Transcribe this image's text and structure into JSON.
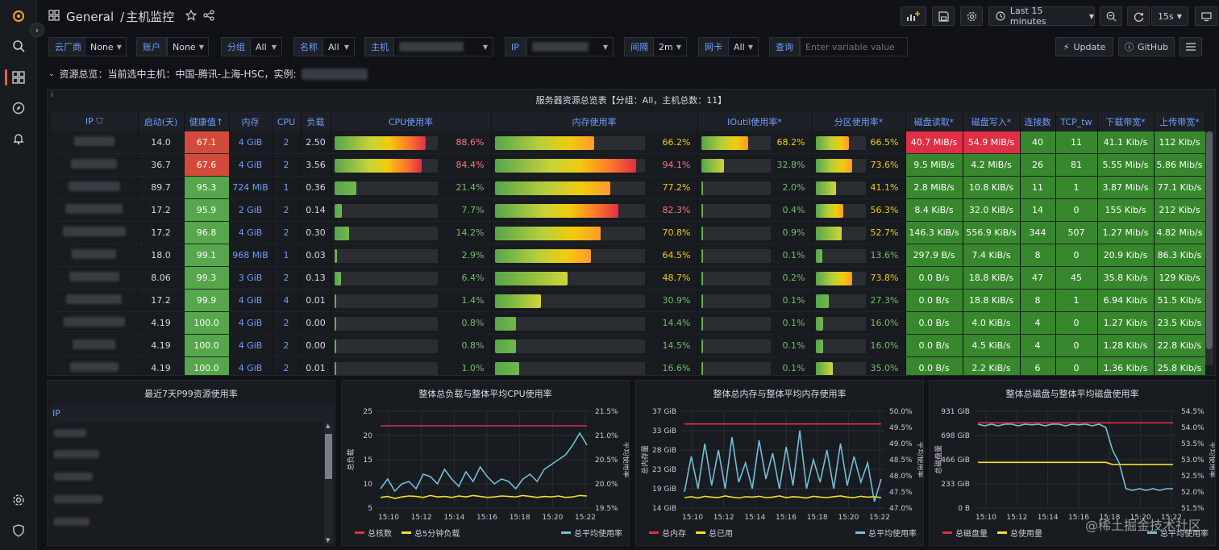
{
  "breadcrumb": {
    "folder": "General",
    "separator": "/",
    "dashboard": "主机监控"
  },
  "toolbar": {
    "time_range": "Last 15 minutes",
    "refresh_interval": "15s"
  },
  "variables": [
    {
      "label": "云厂商",
      "value": "None"
    },
    {
      "label": "账户",
      "value": "None"
    },
    {
      "label": "分组",
      "value": "All"
    },
    {
      "label": "名称",
      "value": "All"
    },
    {
      "label": "主机",
      "value": ""
    },
    {
      "label": "IP",
      "value": ""
    },
    {
      "label": "间隔",
      "value": "2m"
    },
    {
      "label": "网卡",
      "value": "All"
    },
    {
      "label": "查询",
      "placeholder": "Enter variable value"
    }
  ],
  "links": {
    "update": "Update",
    "github": "GitHub"
  },
  "row_title": "资源总览：当前选中主机：中国-腾讯-上海-HSC，实例:",
  "table": {
    "title": "服务器资源总览表【分组：All，主机总数：11】",
    "columns": [
      "IP",
      "启动(天)",
      "健康值",
      "内存",
      "CPU",
      "负载",
      "CPU使用率",
      "内存使用率",
      "IOutil使用率*",
      "分区使用率*",
      "磁盘读取*",
      "磁盘写入*",
      "连接数",
      "TCP_tw",
      "下载带宽*",
      "上传带宽*"
    ],
    "sort_indicator": "↑",
    "rows": [
      {
        "uptime": "14.0",
        "health": "67.1",
        "mem": "4 GiB",
        "cpu": "2",
        "load": "2.50",
        "cpu_pct": 88.6,
        "cpu_txt": "88.6%",
        "mem_pct": 66.2,
        "mem_txt": "66.2%",
        "io_pct": 68.2,
        "io_txt": "68.2%",
        "part_pct": 66.5,
        "part_txt": "66.5%",
        "read": "40.7 MiB/s",
        "write": "54.9 MiB/s",
        "conn": "40",
        "tw": "11",
        "down": "41.1 Kib/s",
        "up": "112 Kib/s"
      },
      {
        "uptime": "36.7",
        "health": "67.6",
        "mem": "4 GiB",
        "cpu": "2",
        "load": "3.56",
        "cpu_pct": 84.4,
        "cpu_txt": "84.4%",
        "mem_pct": 94.1,
        "mem_txt": "94.1%",
        "io_pct": 32.8,
        "io_txt": "32.8%",
        "part_pct": 73.6,
        "part_txt": "73.6%",
        "read": "9.5 MiB/s",
        "write": "4.2 MiB/s",
        "conn": "26",
        "tw": "81",
        "down": "5.55 Mib/s",
        "up": "5.86 Mib/s"
      },
      {
        "uptime": "89.7",
        "health": "95.3",
        "mem": "724 MiB",
        "cpu": "1",
        "load": "0.36",
        "cpu_pct": 21.4,
        "cpu_txt": "21.4%",
        "mem_pct": 77.2,
        "mem_txt": "77.2%",
        "io_pct": 2.0,
        "io_txt": "2.0%",
        "part_pct": 41.1,
        "part_txt": "41.1%",
        "read": "2.8 MiB/s",
        "write": "10.8 KiB/s",
        "conn": "11",
        "tw": "1",
        "down": "3.87 Mib/s",
        "up": "77.1 Kib/s"
      },
      {
        "uptime": "17.2",
        "health": "95.9",
        "mem": "2 GiB",
        "cpu": "2",
        "load": "0.14",
        "cpu_pct": 7.7,
        "cpu_txt": "7.7%",
        "mem_pct": 82.3,
        "mem_txt": "82.3%",
        "io_pct": 0.4,
        "io_txt": "0.4%",
        "part_pct": 56.3,
        "part_txt": "56.3%",
        "read": "8.4 KiB/s",
        "write": "32.0 KiB/s",
        "conn": "14",
        "tw": "0",
        "down": "155 Kib/s",
        "up": "212 Kib/s"
      },
      {
        "uptime": "17.2",
        "health": "96.8",
        "mem": "4 GiB",
        "cpu": "2",
        "load": "0.30",
        "cpu_pct": 14.2,
        "cpu_txt": "14.2%",
        "mem_pct": 70.8,
        "mem_txt": "70.8%",
        "io_pct": 0.9,
        "io_txt": "0.9%",
        "part_pct": 52.7,
        "part_txt": "52.7%",
        "read": "146.3 KiB/s",
        "write": "556.9 KiB/s",
        "conn": "344",
        "tw": "507",
        "down": "1.27 Mib/s",
        "up": "4.82 Mib/s"
      },
      {
        "uptime": "18.0",
        "health": "99.1",
        "mem": "968 MiB",
        "cpu": "1",
        "load": "0.03",
        "cpu_pct": 2.9,
        "cpu_txt": "2.9%",
        "mem_pct": 64.5,
        "mem_txt": "64.5%",
        "io_pct": 0.1,
        "io_txt": "0.1%",
        "part_pct": 13.6,
        "part_txt": "13.6%",
        "read": "297.9 B/s",
        "write": "7.4 KiB/s",
        "conn": "8",
        "tw": "0",
        "down": "20.9 Kib/s",
        "up": "86.3 Kib/s"
      },
      {
        "uptime": "8.06",
        "health": "99.3",
        "mem": "3 GiB",
        "cpu": "2",
        "load": "0.13",
        "cpu_pct": 6.4,
        "cpu_txt": "6.4%",
        "mem_pct": 48.7,
        "mem_txt": "48.7%",
        "io_pct": 0.2,
        "io_txt": "0.2%",
        "part_pct": 73.8,
        "part_txt": "73.8%",
        "read": "0.0 B/s",
        "write": "18.8 KiB/s",
        "conn": "47",
        "tw": "45",
        "down": "35.8 Kib/s",
        "up": "129 Kib/s"
      },
      {
        "uptime": "17.2",
        "health": "99.9",
        "mem": "4 GiB",
        "cpu": "4",
        "load": "0.01",
        "cpu_pct": 1.4,
        "cpu_txt": "1.4%",
        "mem_pct": 30.9,
        "mem_txt": "30.9%",
        "io_pct": 0.1,
        "io_txt": "0.1%",
        "part_pct": 27.3,
        "part_txt": "27.3%",
        "read": "0.0 B/s",
        "write": "18.8 KiB/s",
        "conn": "8",
        "tw": "1",
        "down": "6.94 Kib/s",
        "up": "51.5 Kib/s"
      },
      {
        "uptime": "4.19",
        "health": "100.0",
        "mem": "4 GiB",
        "cpu": "2",
        "load": "0.00",
        "cpu_pct": 0.8,
        "cpu_txt": "0.8%",
        "mem_pct": 14.4,
        "mem_txt": "14.4%",
        "io_pct": 0.1,
        "io_txt": "0.1%",
        "part_pct": 16.0,
        "part_txt": "16.0%",
        "read": "0.0 B/s",
        "write": "4.0 KiB/s",
        "conn": "4",
        "tw": "0",
        "down": "1.27 Kib/s",
        "up": "23.5 Kib/s"
      },
      {
        "uptime": "4.19",
        "health": "100.0",
        "mem": "4 GiB",
        "cpu": "2",
        "load": "0.00",
        "cpu_pct": 0.8,
        "cpu_txt": "0.8%",
        "mem_pct": 14.5,
        "mem_txt": "14.5%",
        "io_pct": 0.1,
        "io_txt": "0.1%",
        "part_pct": 16.0,
        "part_txt": "16.0%",
        "read": "0.0 B/s",
        "write": "4.5 KiB/s",
        "conn": "4",
        "tw": "0",
        "down": "1.28 Kib/s",
        "up": "22.8 Kib/s"
      },
      {
        "uptime": "4.19",
        "health": "100.0",
        "mem": "4 GiB",
        "cpu": "2",
        "load": "0.01",
        "cpu_pct": 1.0,
        "cpu_txt": "1.0%",
        "mem_pct": 16.6,
        "mem_txt": "16.6%",
        "io_pct": 0.1,
        "io_txt": "0.1%",
        "part_pct": 35.0,
        "part_txt": "35.0%",
        "read": "0.0 B/s",
        "write": "2.2 KiB/s",
        "conn": "6",
        "tw": "0",
        "down": "1.36 Kib/s",
        "up": "25.8 Kib/s"
      }
    ]
  },
  "p99_panel": {
    "title": "最近7天P99资源使用率",
    "column": "IP"
  },
  "chart_data": [
    {
      "type": "line",
      "title": "整体总负载与整体平均CPU使用率",
      "ylabel": "总负载",
      "y2label": "平均使用率",
      "ylim": [
        5,
        25
      ],
      "yticks": [
        "25",
        "20",
        "15",
        "10",
        "5"
      ],
      "y2lim": [
        19.5,
        21.5
      ],
      "y2ticks": [
        "21.5%",
        "21.0%",
        "20.5%",
        "20.0%",
        "19.5%"
      ],
      "xticks": [
        "15:10",
        "15:12",
        "15:14",
        "15:16",
        "15:18",
        "15:20",
        "15:22"
      ],
      "series": [
        {
          "name": "总核数",
          "color": "#e02f44",
          "axis": "left",
          "values": [
            22,
            22,
            22,
            22,
            22,
            22,
            22,
            22,
            22,
            22,
            22,
            22,
            22,
            22,
            22,
            22,
            22,
            22,
            22,
            22,
            22,
            22,
            22,
            22,
            22,
            22,
            22,
            22,
            22,
            22
          ]
        },
        {
          "name": "总5分钟负载",
          "color": "#fade2a",
          "axis": "left",
          "values": [
            7.2,
            7.4,
            7.0,
            7.3,
            7.5,
            7.4,
            7.2,
            7.6,
            7.3,
            7.4,
            7.2,
            7.5,
            7.3,
            7.6,
            7.4,
            7.2,
            7.3,
            7.5,
            7.4,
            7.3,
            7.6,
            7.4,
            7.2,
            7.4,
            7.3,
            7.5,
            7.2,
            7.3,
            7.6,
            7.5
          ]
        },
        {
          "name": "总平均使用率",
          "color": "#73bfd8",
          "axis": "right",
          "values": [
            19.9,
            20.1,
            19.85,
            20.0,
            20.05,
            19.9,
            20.2,
            20.15,
            20.0,
            20.3,
            20.1,
            19.95,
            20.25,
            20.05,
            20.35,
            20.15,
            20.0,
            20.1,
            20.05,
            19.9,
            20.1,
            20.2,
            20.05,
            20.3,
            20.4,
            20.5,
            20.6,
            20.8,
            21.05,
            20.8
          ]
        }
      ]
    },
    {
      "type": "line",
      "title": "整体总内存与整体平均内存使用率",
      "ylabel": "总内存量",
      "y2label": "平均使用率",
      "ylim": [
        14,
        37
      ],
      "yticks": [
        "37 GiB",
        "33 GiB",
        "28 GiB",
        "23 GiB",
        "19 GiB",
        "14 GiB"
      ],
      "y2lim": [
        47.0,
        50.0
      ],
      "y2ticks": [
        "50.0%",
        "49.5%",
        "49.0%",
        "48.5%",
        "48.0%",
        "47.5%",
        "47.0%"
      ],
      "xticks": [
        "15:10",
        "15:12",
        "15:14",
        "15:16",
        "15:18",
        "15:20",
        "15:22"
      ],
      "series": [
        {
          "name": "总内存",
          "color": "#e02f44",
          "axis": "left",
          "values": [
            34,
            34,
            34,
            34,
            34,
            34,
            34,
            34,
            34,
            34,
            34,
            34,
            34,
            34,
            34,
            34,
            34,
            34,
            34,
            34,
            34,
            34,
            34,
            34,
            34,
            34,
            34,
            34,
            34,
            34
          ]
        },
        {
          "name": "总已用",
          "color": "#fade2a",
          "axis": "left",
          "values": [
            16.5,
            16.7,
            16.4,
            16.8,
            16.6,
            16.5,
            16.9,
            16.6,
            16.4,
            16.7,
            16.6,
            16.8,
            16.5,
            16.6,
            16.9,
            16.5,
            16.7,
            16.6,
            16.4,
            16.8,
            16.6,
            16.5,
            16.7,
            16.9,
            16.6,
            16.5,
            16.8,
            16.6,
            16.7,
            16.5
          ]
        },
        {
          "name": "总平均使用率",
          "color": "#73bfd8",
          "axis": "right",
          "values": [
            47.5,
            48.6,
            47.6,
            49.0,
            47.7,
            48.8,
            47.6,
            49.2,
            47.8,
            48.4,
            47.6,
            49.1,
            47.9,
            48.7,
            47.6,
            48.9,
            47.7,
            49.4,
            47.6,
            48.5,
            47.8,
            48.8,
            47.6,
            49.0,
            47.7,
            48.6,
            47.8,
            48.4,
            47.2,
            47.9
          ]
        }
      ]
    },
    {
      "type": "line",
      "title": "整体总磁盘与整体平均磁盘使用率",
      "ylabel": "总磁盘量",
      "y2label": "平均使用率",
      "ylim": [
        0,
        931
      ],
      "yticks": [
        "931 GiB",
        "698 GiB",
        "466 GiB",
        "233 GiB",
        "0 B"
      ],
      "y2lim": [
        51.5,
        54.5
      ],
      "y2ticks": [
        "54.5%",
        "54.0%",
        "53.5%",
        "53.0%",
        "52.5%",
        "52.0%",
        "51.5%"
      ],
      "xticks": [
        "15:10",
        "15:12",
        "15:14",
        "15:16",
        "15:18",
        "15:20",
        "15:22"
      ],
      "series": [
        {
          "name": "总磁盘量",
          "color": "#e02f44",
          "axis": "left",
          "values": [
            820,
            820,
            820,
            820,
            820,
            820,
            820,
            820,
            820,
            820,
            820,
            820,
            820,
            820,
            820,
            820,
            820,
            820,
            820,
            820,
            820,
            820,
            820,
            820,
            820,
            820,
            820,
            820,
            820,
            820
          ]
        },
        {
          "name": "总使用量",
          "color": "#fade2a",
          "axis": "left",
          "values": [
            440,
            440,
            440,
            440,
            440,
            440,
            440,
            440,
            440,
            440,
            440,
            440,
            440,
            440,
            440,
            440,
            440,
            440,
            440,
            440,
            420,
            420,
            420,
            420,
            420,
            420,
            420,
            420,
            420,
            420
          ]
        },
        {
          "name": "总平均使用率",
          "color": "#73bfd8",
          "axis": "right",
          "values": [
            54.1,
            54.05,
            54.1,
            54.05,
            54.1,
            54.1,
            54.05,
            54.1,
            54.08,
            54.1,
            54.05,
            54.1,
            54.1,
            54.05,
            54.1,
            54.08,
            54.1,
            54.05,
            54.1,
            54.0,
            53.3,
            52.9,
            52.1,
            52.05,
            52.1,
            52.05,
            52.1,
            52.05,
            52.1,
            52.1
          ]
        }
      ]
    }
  ],
  "watermark": "@稀土掘金技术社区"
}
